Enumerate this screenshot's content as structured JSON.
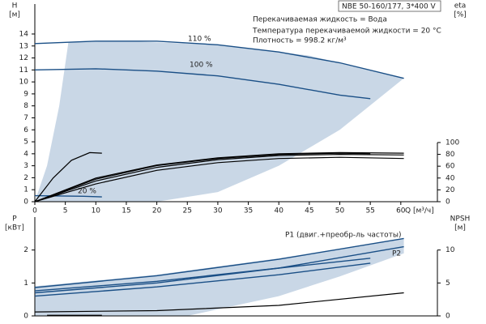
{
  "chart_data": [
    {
      "type": "line",
      "title": "NBE 50-160/177, 3*400 V",
      "annotations": [
        "Перекачиваемая жидкость = Вода",
        "Температура перекачиваемой жидкости = 20 °C",
        "Плотность = 998.2 кг/м³"
      ],
      "y_label": [
        "H",
        "[м]"
      ],
      "y2_label": [
        "eta",
        "[%]"
      ],
      "x_label": "Q [м³/ч]",
      "xlim": [
        0,
        66
      ],
      "xticks": [
        0,
        5,
        10,
        15,
        20,
        25,
        30,
        35,
        40,
        45,
        50,
        55,
        60
      ],
      "ylim": [
        0,
        16.5
      ],
      "yticks": [
        0,
        1,
        2,
        3,
        4,
        5,
        6,
        7,
        8,
        9,
        10,
        11,
        12,
        13,
        14
      ],
      "y2lim": [
        0,
        334
      ],
      "y2ticks": [
        0,
        20,
        40,
        60,
        80,
        100
      ],
      "region": {
        "color": "#c9d7e6",
        "x": [
          0,
          2,
          4,
          5.5,
          15,
          30,
          45,
          60.5,
          50,
          40,
          30,
          20,
          0
        ],
        "y": [
          0,
          3,
          8,
          13.3,
          13.4,
          13.1,
          12.2,
          10.3,
          6,
          3,
          0.8,
          0,
          0
        ]
      },
      "series": [
        {
          "name": "110 %",
          "color": "#1a4f86",
          "x": [
            0,
            10,
            20,
            30,
            40,
            50,
            60.5
          ],
          "values": [
            13.2,
            13.4,
            13.4,
            13.1,
            12.5,
            11.6,
            10.3
          ]
        },
        {
          "name": "100 %",
          "color": "#1a4f86",
          "x": [
            0,
            10,
            20,
            30,
            40,
            50,
            55
          ],
          "values": [
            11,
            11.1,
            10.9,
            10.5,
            9.8,
            8.9,
            8.6
          ]
        },
        {
          "name": "20 %",
          "color": "#1a4f86",
          "x": [
            0,
            4,
            8,
            11
          ],
          "values": [
            0.5,
            0.48,
            0.45,
            0.4
          ]
        },
        {
          "color": "#000",
          "axis": "y2",
          "x": [
            0,
            10,
            20,
            30,
            40,
            50,
            60.5
          ],
          "values": [
            0,
            40,
            62,
            74,
            81,
            83,
            82
          ]
        },
        {
          "color": "#000",
          "axis": "y2",
          "x": [
            0,
            10,
            20,
            30,
            40,
            50,
            60.5
          ],
          "values": [
            0,
            35,
            58,
            71,
            78,
            80,
            79
          ]
        },
        {
          "color": "#000",
          "axis": "y2",
          "x": [
            0,
            10,
            20,
            30,
            40,
            50,
            55
          ],
          "values": [
            0,
            38,
            61,
            73,
            80,
            82,
            81
          ]
        },
        {
          "color": "#000",
          "axis": "y2",
          "x": [
            0,
            10,
            20,
            30,
            40,
            50,
            60.5
          ],
          "values": [
            0,
            30,
            53,
            66,
            73,
            75,
            73
          ]
        },
        {
          "color": "#000",
          "axis": "y2",
          "x": [
            0,
            3,
            6,
            9,
            11
          ],
          "values": [
            0,
            40,
            70,
            83,
            82
          ]
        }
      ]
    },
    {
      "type": "line",
      "annotations": [
        "P1 (двиг.+преобр-ль частоты)",
        "P2"
      ],
      "y_label": [
        "P",
        "[кВт]"
      ],
      "y2_label": [
        "NPSH",
        "[м]"
      ],
      "xlim": [
        0,
        66
      ],
      "ylim": [
        0,
        3
      ],
      "yticks": [
        0,
        1,
        2
      ],
      "y2lim": [
        0,
        15
      ],
      "y2ticks": [
        0,
        5,
        10
      ],
      "region": {
        "color": "#c9d7e6",
        "x": [
          0,
          20,
          40,
          60.5,
          60.5,
          50,
          40,
          30,
          25,
          0
        ],
        "y": [
          0.9,
          1.25,
          1.75,
          2.35,
          1.9,
          1.2,
          0.6,
          0.2,
          0,
          0
        ]
      },
      "series": [
        {
          "color": "#1a4f86",
          "x": [
            0,
            20,
            40,
            60.5
          ],
          "values": [
            0.86,
            1.22,
            1.72,
            2.35
          ]
        },
        {
          "color": "#1a4f86",
          "x": [
            0,
            20,
            40,
            55
          ],
          "values": [
            0.76,
            1.05,
            1.45,
            1.75
          ]
        },
        {
          "color": "#1a4f86",
          "x": [
            0,
            20,
            40,
            60.5
          ],
          "values": [
            0.7,
            1.0,
            1.45,
            2.1
          ]
        },
        {
          "color": "#1a4f86",
          "x": [
            0,
            20,
            40,
            55
          ],
          "values": [
            0.6,
            0.88,
            1.25,
            1.6
          ]
        },
        {
          "color": "#000",
          "axis": "y2",
          "x": [
            0,
            20,
            40,
            60.5
          ],
          "values": [
            0.6,
            0.8,
            1.6,
            3.5
          ]
        },
        {
          "color": "#000",
          "axis": "y2",
          "x": [
            2,
            11
          ],
          "values": [
            0.1,
            0.1
          ]
        }
      ]
    }
  ]
}
